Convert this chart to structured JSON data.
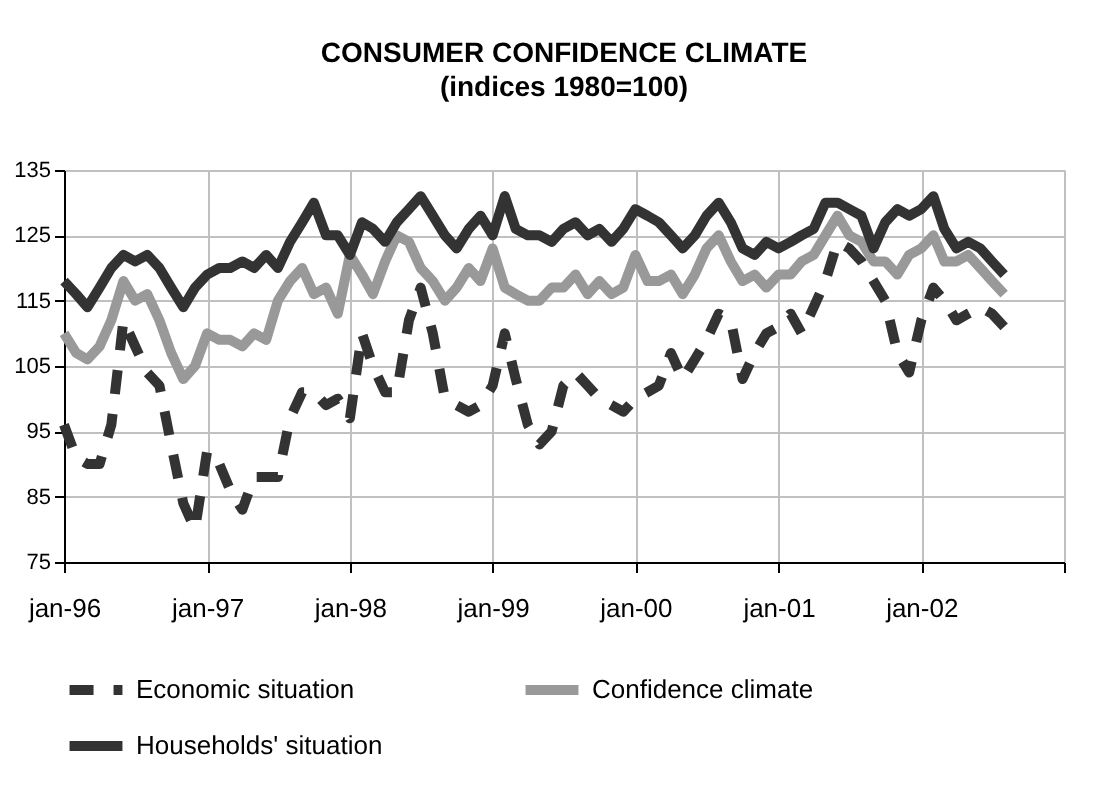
{
  "chart_data": {
    "type": "line",
    "title": "CONSUMER CONFIDENCE CLIMATE",
    "subtitle": "(indices 1980=100)",
    "x": [
      "1996-01",
      "1996-02",
      "1996-03",
      "1996-04",
      "1996-05",
      "1996-06",
      "1996-07",
      "1996-08",
      "1996-09",
      "1996-10",
      "1996-11",
      "1996-12",
      "1997-01",
      "1997-02",
      "1997-03",
      "1997-04",
      "1997-05",
      "1997-06",
      "1997-07",
      "1997-08",
      "1997-09",
      "1997-10",
      "1997-11",
      "1997-12",
      "1998-01",
      "1998-02",
      "1998-03",
      "1998-04",
      "1998-05",
      "1998-06",
      "1998-07",
      "1998-08",
      "1998-09",
      "1998-10",
      "1998-11",
      "1998-12",
      "1999-01",
      "1999-02",
      "1999-03",
      "1999-04",
      "1999-05",
      "1999-06",
      "1999-07",
      "1999-08",
      "1999-09",
      "1999-10",
      "1999-11",
      "1999-12",
      "2000-01",
      "2000-02",
      "2000-03",
      "2000-04",
      "2000-05",
      "2000-06",
      "2000-07",
      "2000-08",
      "2000-09",
      "2000-10",
      "2000-11",
      "2000-12",
      "2001-01",
      "2001-02",
      "2001-03",
      "2001-04",
      "2001-05",
      "2001-06",
      "2001-07",
      "2001-08",
      "2001-09",
      "2001-10",
      "2001-11",
      "2001-12",
      "2002-01",
      "2002-02",
      "2002-03",
      "2002-04",
      "2002-05",
      "2002-06",
      "2002-07",
      "2002-08"
    ],
    "series": [
      {
        "name": "Economic situation",
        "color": "#333333",
        "line_style": "dashed",
        "values": [
          96,
          91,
          90,
          90,
          96,
          112,
          108,
          104,
          102,
          93,
          84,
          80,
          92,
          90,
          86,
          83,
          88,
          88,
          88,
          97,
          101,
          101,
          99,
          100,
          97,
          110,
          105,
          101,
          101,
          112,
          117,
          110,
          100,
          99,
          98,
          99,
          102,
          110,
          103,
          96,
          93,
          95,
          102,
          104,
          102,
          100,
          99,
          98,
          100,
          101,
          102,
          107,
          103,
          106,
          109,
          113,
          112,
          103,
          107,
          110,
          111,
          113,
          110,
          114,
          118,
          124,
          123,
          121,
          118,
          115,
          107,
          104,
          112,
          117,
          115,
          112,
          113,
          114,
          113,
          111
        ]
      },
      {
        "name": "Confidence climate",
        "color": "#999999",
        "line_style": "solid",
        "values": [
          110,
          107,
          106,
          108,
          112,
          118,
          115,
          116,
          112,
          107,
          103,
          105,
          110,
          109,
          109,
          108,
          110,
          109,
          115,
          118,
          120,
          116,
          117,
          113,
          122,
          119,
          116,
          121,
          125,
          124,
          120,
          118,
          115,
          117,
          120,
          118,
          123,
          117,
          116,
          115,
          115,
          117,
          117,
          119,
          116,
          118,
          116,
          117,
          122,
          118,
          118,
          119,
          116,
          119,
          123,
          125,
          121,
          118,
          119,
          117,
          119,
          119,
          121,
          122,
          125,
          128,
          125,
          124,
          121,
          121,
          119,
          122,
          123,
          125,
          121,
          121,
          122,
          120,
          118,
          116
        ]
      },
      {
        "name": "Households' situation",
        "color": "#333333",
        "line_style": "solid",
        "values": [
          118,
          116,
          114,
          117,
          120,
          122,
          121,
          122,
          120,
          117,
          114,
          117,
          119,
          120,
          120,
          121,
          120,
          122,
          120,
          124,
          127,
          130,
          125,
          125,
          122,
          127,
          126,
          124,
          127,
          129,
          131,
          128,
          125,
          123,
          126,
          128,
          125,
          131,
          126,
          125,
          125,
          124,
          126,
          127,
          125,
          126,
          124,
          126,
          129,
          128,
          127,
          125,
          123,
          125,
          128,
          130,
          127,
          123,
          122,
          124,
          123,
          124,
          125,
          126,
          130,
          130,
          129,
          128,
          123,
          127,
          129,
          128,
          129,
          131,
          126,
          123,
          124,
          123,
          121,
          119
        ]
      }
    ],
    "xlim": [
      "1996-01",
      "2003-01"
    ],
    "xticks": [
      {
        "value": "1996-01",
        "label": "jan-96"
      },
      {
        "value": "1997-01",
        "label": "jan-97"
      },
      {
        "value": "1998-01",
        "label": "jan-98"
      },
      {
        "value": "1999-01",
        "label": "jan-99"
      },
      {
        "value": "2000-01",
        "label": "jan-00"
      },
      {
        "value": "2001-01",
        "label": "jan-01"
      },
      {
        "value": "2002-01",
        "label": "jan-02"
      },
      {
        "value": "2003-01",
        "label": null
      }
    ],
    "ylim": [
      75,
      135
    ],
    "yticks": [
      75,
      85,
      95,
      105,
      115,
      125,
      135
    ],
    "grid": true,
    "legend": "bottom",
    "marker": "none"
  }
}
